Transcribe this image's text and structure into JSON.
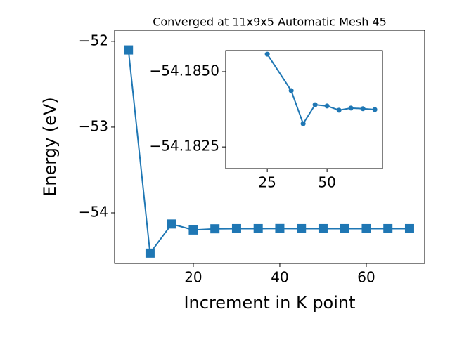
{
  "chart_data": [
    {
      "type": "line",
      "title": "Converged at 11x9x5 Automatic Mesh 45",
      "xlabel": "Increment in K point",
      "ylabel": "Energy (eV)",
      "marker": "square",
      "series": [
        {
          "color": "#1f77b4",
          "x": [
            5,
            10,
            15,
            20,
            25,
            30,
            35,
            40,
            45,
            50,
            55,
            60,
            65,
            70
          ],
          "values": [
            -52.1,
            -54.47,
            -54.13,
            -54.2,
            -54.186,
            -54.184,
            -54.184,
            -54.183,
            -54.184,
            -54.184,
            -54.184,
            -54.184,
            -54.184,
            -54.184
          ]
        }
      ],
      "xlim": [
        1.8,
        73.5
      ],
      "xticks": [
        20,
        40,
        60
      ],
      "ylim": [
        -54.59,
        -51.87
      ],
      "yticks": [
        {
          "value": -54,
          "label": "−54"
        },
        {
          "value": -53,
          "label": "−53"
        },
        {
          "value": -52,
          "label": "−52"
        }
      ]
    },
    {
      "type": "line",
      "marker": "circle",
      "series": [
        {
          "color": "#1f77b4",
          "x": [
            25,
            35,
            40,
            45,
            50,
            55,
            60,
            65,
            70
          ],
          "values": [
            -54.18558,
            -54.18437,
            -54.18327,
            -54.1839,
            -54.18386,
            -54.18372,
            -54.18379,
            -54.18377,
            -54.18374
          ]
        }
      ],
      "xlim": [
        7.6,
        73.2
      ],
      "xticks": [
        25,
        50
      ],
      "ylim": [
        -54.18178,
        -54.1857
      ],
      "yticks": [
        {
          "value": -54.185,
          "label": "−54.1850"
        },
        {
          "value": -54.1825,
          "label": "−54.1825"
        }
      ]
    }
  ]
}
